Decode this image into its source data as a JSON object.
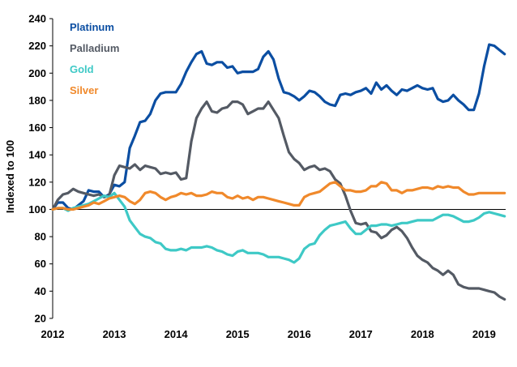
{
  "chart_data": {
    "type": "line",
    "title": "",
    "xlabel": "",
    "ylabel": "Indexed to 100",
    "ylim": [
      20,
      240
    ],
    "yticks": [
      20,
      40,
      60,
      80,
      100,
      120,
      140,
      160,
      180,
      200,
      220,
      240
    ],
    "xlim": [
      2012.0,
      2019.35
    ],
    "xticks": [
      2012,
      2013,
      2014,
      2015,
      2016,
      2017,
      2018,
      2019
    ],
    "baseline": 100,
    "legend_position": "top-left",
    "series": [
      {
        "name": "Platinum",
        "color": "#0B4EA2",
        "x": [
          2012.0,
          2012.083,
          2012.167,
          2012.25,
          2012.333,
          2012.417,
          2012.5,
          2012.583,
          2012.667,
          2012.75,
          2012.833,
          2012.917,
          2013.0,
          2013.083,
          2013.167,
          2013.25,
          2013.333,
          2013.417,
          2013.5,
          2013.583,
          2013.667,
          2013.75,
          2013.833,
          2013.917,
          2014.0,
          2014.083,
          2014.167,
          2014.25,
          2014.333,
          2014.417,
          2014.5,
          2014.583,
          2014.667,
          2014.75,
          2014.833,
          2014.917,
          2015.0,
          2015.083,
          2015.167,
          2015.25,
          2015.333,
          2015.417,
          2015.5,
          2015.583,
          2015.667,
          2015.75,
          2015.833,
          2015.917,
          2016.0,
          2016.083,
          2016.167,
          2016.25,
          2016.333,
          2016.417,
          2016.5,
          2016.583,
          2016.667,
          2016.75,
          2016.833,
          2016.917,
          2017.0,
          2017.083,
          2017.167,
          2017.25,
          2017.333,
          2017.417,
          2017.5,
          2017.583,
          2017.667,
          2017.75,
          2017.833,
          2017.917,
          2018.0,
          2018.083,
          2018.167,
          2018.25,
          2018.333,
          2018.417,
          2018.5,
          2018.583,
          2018.667,
          2018.75,
          2018.833,
          2018.917,
          2019.0,
          2019.083,
          2019.167,
          2019.25,
          2019.333
        ],
        "values": [
          100,
          105,
          105,
          101,
          100,
          103,
          106,
          114,
          113,
          113,
          109,
          111,
          118,
          117,
          120,
          145,
          154,
          164,
          165,
          170,
          180,
          185,
          186,
          186,
          186,
          192,
          201,
          208,
          214,
          216,
          207,
          206,
          208,
          208,
          204,
          205,
          200,
          201,
          201,
          201,
          203,
          212,
          216,
          210,
          196,
          186,
          185,
          183,
          180,
          183,
          187,
          186,
          183,
          179,
          177,
          176,
          184,
          185,
          184,
          186,
          187,
          189,
          185,
          193,
          188,
          191,
          187,
          184,
          188,
          187,
          189,
          191,
          189,
          188,
          189,
          181,
          179,
          180,
          184,
          180,
          177,
          173,
          173,
          185,
          205,
          221,
          220,
          217,
          214
        ]
      },
      {
        "name": "Palladium",
        "color": "#545A64",
        "x": [
          2012.0,
          2012.083,
          2012.167,
          2012.25,
          2012.333,
          2012.417,
          2012.5,
          2012.583,
          2012.667,
          2012.75,
          2012.833,
          2012.917,
          2013.0,
          2013.083,
          2013.167,
          2013.25,
          2013.333,
          2013.417,
          2013.5,
          2013.583,
          2013.667,
          2013.75,
          2013.833,
          2013.917,
          2014.0,
          2014.083,
          2014.167,
          2014.25,
          2014.333,
          2014.417,
          2014.5,
          2014.583,
          2014.667,
          2014.75,
          2014.833,
          2014.917,
          2015.0,
          2015.083,
          2015.167,
          2015.25,
          2015.333,
          2015.417,
          2015.5,
          2015.583,
          2015.667,
          2015.75,
          2015.833,
          2015.917,
          2016.0,
          2016.083,
          2016.167,
          2016.25,
          2016.333,
          2016.417,
          2016.5,
          2016.583,
          2016.667,
          2016.75,
          2016.833,
          2016.917,
          2017.0,
          2017.083,
          2017.167,
          2017.25,
          2017.333,
          2017.417,
          2017.5,
          2017.583,
          2017.667,
          2017.75,
          2017.833,
          2017.917,
          2018.0,
          2018.083,
          2018.167,
          2018.25,
          2018.333,
          2018.417,
          2018.5,
          2018.583,
          2018.667,
          2018.75,
          2018.833,
          2018.917,
          2019.0,
          2019.083,
          2019.167,
          2019.25,
          2019.333
        ],
        "values": [
          100,
          107,
          111,
          112,
          115,
          113,
          112,
          111,
          110,
          111,
          109,
          110,
          125,
          132,
          131,
          130,
          133,
          129,
          132,
          131,
          130,
          126,
          127,
          126,
          127,
          122,
          123,
          150,
          167,
          174,
          179,
          172,
          171,
          174,
          175,
          179,
          179,
          177,
          170,
          172,
          174,
          174,
          179,
          173,
          167,
          154,
          142,
          137,
          134,
          129,
          131,
          132,
          129,
          130,
          128,
          122,
          119,
          110,
          99,
          90,
          89,
          90,
          84,
          83,
          79,
          81,
          85,
          87,
          84,
          79,
          72,
          66,
          63,
          61,
          57,
          55,
          52,
          55,
          52,
          45,
          43,
          42,
          42,
          42,
          41,
          40,
          39,
          36,
          34
        ]
      },
      {
        "name": "Gold",
        "color": "#3EC9C6",
        "x": [
          2012.0,
          2012.083,
          2012.167,
          2012.25,
          2012.333,
          2012.417,
          2012.5,
          2012.583,
          2012.667,
          2012.75,
          2012.833,
          2012.917,
          2013.0,
          2013.083,
          2013.167,
          2013.25,
          2013.333,
          2013.417,
          2013.5,
          2013.583,
          2013.667,
          2013.75,
          2013.833,
          2013.917,
          2014.0,
          2014.083,
          2014.167,
          2014.25,
          2014.333,
          2014.417,
          2014.5,
          2014.583,
          2014.667,
          2014.75,
          2014.833,
          2014.917,
          2015.0,
          2015.083,
          2015.167,
          2015.25,
          2015.333,
          2015.417,
          2015.5,
          2015.583,
          2015.667,
          2015.75,
          2015.833,
          2015.917,
          2016.0,
          2016.083,
          2016.167,
          2016.25,
          2016.333,
          2016.417,
          2016.5,
          2016.583,
          2016.667,
          2016.75,
          2016.833,
          2016.917,
          2017.0,
          2017.083,
          2017.167,
          2017.25,
          2017.333,
          2017.417,
          2017.5,
          2017.583,
          2017.667,
          2017.75,
          2017.833,
          2017.917,
          2018.0,
          2018.083,
          2018.167,
          2018.25,
          2018.333,
          2018.417,
          2018.5,
          2018.583,
          2018.667,
          2018.75,
          2018.833,
          2018.917,
          2019.0,
          2019.083,
          2019.167,
          2019.25,
          2019.333
        ],
        "values": [
          100,
          101,
          101,
          99,
          101,
          102,
          103,
          104,
          106,
          108,
          110,
          109,
          112,
          107,
          102,
          92,
          87,
          82,
          80,
          79,
          76,
          75,
          71,
          70,
          70,
          71,
          70,
          72,
          72,
          72,
          73,
          72,
          70,
          69,
          67,
          66,
          69,
          70,
          68,
          68,
          68,
          67,
          65,
          65,
          65,
          64,
          63,
          61,
          64,
          71,
          74,
          75,
          81,
          85,
          88,
          89,
          90,
          91,
          86,
          82,
          82,
          85,
          88,
          88,
          89,
          89,
          88,
          89,
          90,
          90,
          91,
          92,
          92,
          92,
          92,
          94,
          96,
          96,
          95,
          93,
          91,
          91,
          92,
          94,
          97,
          98,
          97,
          96,
          95
        ]
      },
      {
        "name": "Silver",
        "color": "#F0892B",
        "x": [
          2012.0,
          2012.083,
          2012.167,
          2012.25,
          2012.333,
          2012.417,
          2012.5,
          2012.583,
          2012.667,
          2012.75,
          2012.833,
          2012.917,
          2013.0,
          2013.083,
          2013.167,
          2013.25,
          2013.333,
          2013.417,
          2013.5,
          2013.583,
          2013.667,
          2013.75,
          2013.833,
          2013.917,
          2014.0,
          2014.083,
          2014.167,
          2014.25,
          2014.333,
          2014.417,
          2014.5,
          2014.583,
          2014.667,
          2014.75,
          2014.833,
          2014.917,
          2015.0,
          2015.083,
          2015.167,
          2015.25,
          2015.333,
          2015.417,
          2015.5,
          2015.583,
          2015.667,
          2015.75,
          2015.833,
          2015.917,
          2016.0,
          2016.083,
          2016.167,
          2016.25,
          2016.333,
          2016.417,
          2016.5,
          2016.583,
          2016.667,
          2016.75,
          2016.833,
          2016.917,
          2017.0,
          2017.083,
          2017.167,
          2017.25,
          2017.333,
          2017.417,
          2017.5,
          2017.583,
          2017.667,
          2017.75,
          2017.833,
          2017.917,
          2018.0,
          2018.083,
          2018.167,
          2018.25,
          2018.333,
          2018.417,
          2018.5,
          2018.583,
          2018.667,
          2018.75,
          2018.833,
          2018.917,
          2019.0,
          2019.083,
          2019.167,
          2019.25,
          2019.333
        ],
        "values": [
          100,
          101,
          101,
          100,
          100,
          101,
          102,
          103,
          105,
          104,
          106,
          108,
          109,
          110,
          109,
          106,
          104,
          107,
          112,
          113,
          112,
          109,
          107,
          109,
          110,
          112,
          111,
          112,
          110,
          110,
          111,
          113,
          112,
          112,
          109,
          108,
          110,
          108,
          109,
          107,
          109,
          109,
          108,
          107,
          106,
          105,
          104,
          103,
          103,
          109,
          111,
          112,
          113,
          116,
          119,
          120,
          117,
          114,
          114,
          113,
          113,
          114,
          117,
          117,
          120,
          119,
          114,
          114,
          112,
          114,
          114,
          115,
          116,
          116,
          115,
          117,
          116,
          117,
          116,
          116,
          113,
          111,
          111,
          112,
          112,
          112,
          112,
          112,
          112
        ]
      }
    ]
  }
}
